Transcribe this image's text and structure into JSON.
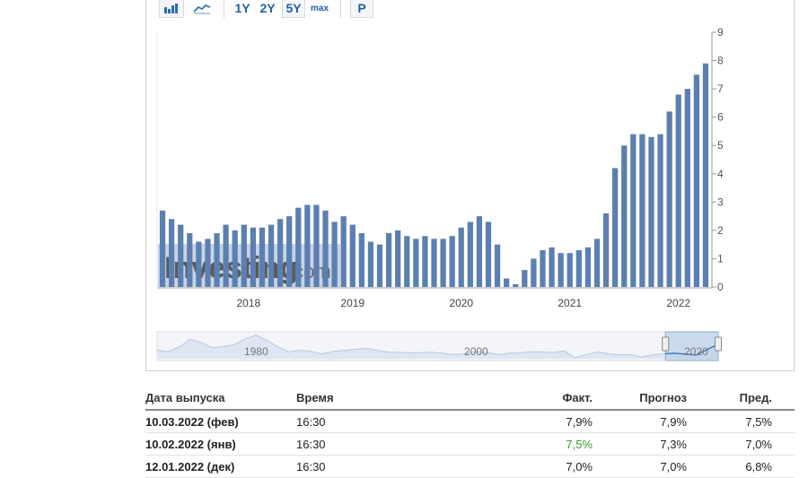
{
  "toolbar": {
    "icons": [
      "bar-chart-icon",
      "line-chart-icon"
    ],
    "range_buttons": [
      "1Y",
      "2Y",
      "5Y",
      "max"
    ],
    "selected_range": "5Y",
    "p_button": "P"
  },
  "colors": {
    "bar": "#5b7fb0",
    "watermark_bg": "#c7d3e6",
    "positive": "#3a9a2a",
    "link": "#1f5fa8"
  },
  "watermark": {
    "text_main": "Investing",
    "text_suffix": ".com"
  },
  "chart_data": {
    "type": "bar",
    "y_axis_position": "right",
    "ylim": [
      0,
      9
    ],
    "yticks": [
      "0",
      "1",
      "2",
      "3",
      "4",
      "5",
      "6",
      "7",
      "8",
      "9"
    ],
    "x_tick_labels": [
      {
        "label": "2018",
        "index": 9.5
      },
      {
        "label": "2019",
        "index": 21
      },
      {
        "label": "2020",
        "index": 33
      },
      {
        "label": "2021",
        "index": 45
      },
      {
        "label": "2022",
        "index": 57
      }
    ],
    "values": [
      2.7,
      2.4,
      2.2,
      1.9,
      1.6,
      1.7,
      1.9,
      2.2,
      2.0,
      2.2,
      2.1,
      2.1,
      2.2,
      2.4,
      2.5,
      2.8,
      2.9,
      2.9,
      2.7,
      2.3,
      2.5,
      2.2,
      1.9,
      1.6,
      1.5,
      1.9,
      2.0,
      1.8,
      1.7,
      1.8,
      1.7,
      1.7,
      1.8,
      2.1,
      2.3,
      2.5,
      2.3,
      1.5,
      0.3,
      0.1,
      0.6,
      1.0,
      1.3,
      1.4,
      1.2,
      1.2,
      1.3,
      1.4,
      1.7,
      2.6,
      4.2,
      5.0,
      5.4,
      5.4,
      5.3,
      5.4,
      6.2,
      6.8,
      7.0,
      7.5,
      7.9
    ]
  },
  "navigator": {
    "labels": [
      "1980",
      "2000",
      "2020"
    ],
    "line": [
      [
        1971,
        4.4
      ],
      [
        1972,
        3.3
      ],
      [
        1973,
        6.2
      ],
      [
        1974,
        11.0
      ],
      [
        1975,
        9.1
      ],
      [
        1976,
        5.8
      ],
      [
        1977,
        6.5
      ],
      [
        1978,
        7.6
      ],
      [
        1979,
        11.3
      ],
      [
        1980,
        13.5
      ],
      [
        1981,
        10.3
      ],
      [
        1982,
        6.2
      ],
      [
        1983,
        3.2
      ],
      [
        1984,
        4.3
      ],
      [
        1985,
        3.6
      ],
      [
        1986,
        1.9
      ],
      [
        1987,
        3.6
      ],
      [
        1988,
        4.1
      ],
      [
        1989,
        4.8
      ],
      [
        1990,
        5.4
      ],
      [
        1991,
        4.2
      ],
      [
        1992,
        3.0
      ],
      [
        1993,
        3.0
      ],
      [
        1994,
        2.6
      ],
      [
        1995,
        2.8
      ],
      [
        1996,
        3.0
      ],
      [
        1997,
        2.3
      ],
      [
        1998,
        1.6
      ],
      [
        1999,
        2.2
      ],
      [
        2000,
        3.4
      ],
      [
        2001,
        2.8
      ],
      [
        2002,
        1.6
      ],
      [
        2003,
        2.3
      ],
      [
        2004,
        2.7
      ],
      [
        2005,
        3.4
      ],
      [
        2006,
        3.2
      ],
      [
        2007,
        2.8
      ],
      [
        2008,
        3.8
      ],
      [
        2009,
        -0.4
      ],
      [
        2010,
        1.6
      ],
      [
        2011,
        3.2
      ],
      [
        2012,
        2.1
      ],
      [
        2013,
        1.5
      ],
      [
        2014,
        1.6
      ],
      [
        2015,
        0.1
      ],
      [
        2016,
        1.3
      ],
      [
        2017,
        2.1
      ],
      [
        2018,
        2.4
      ],
      [
        2019,
        1.8
      ],
      [
        2020,
        1.2
      ],
      [
        2021,
        4.7
      ],
      [
        2022,
        7.9
      ]
    ],
    "x_range": [
      1971,
      2022
    ],
    "selection_start": 2017.2
  },
  "table": {
    "headers": {
      "date": "Дата выпуска",
      "time": "Время",
      "actual": "Факт.",
      "forecast": "Прогноз",
      "previous": "Пред."
    },
    "rows": [
      {
        "date": "10.03.2022 (фев)",
        "time": "16:30",
        "actual": "7,9%",
        "actual_status": "neutral",
        "forecast": "7,9%",
        "previous": "7,5%"
      },
      {
        "date": "10.02.2022 (янв)",
        "time": "16:30",
        "actual": "7,5%",
        "actual_status": "positive",
        "forecast": "7,3%",
        "previous": "7,0%"
      },
      {
        "date": "12.01.2022 (дек)",
        "time": "16:30",
        "actual": "7,0%",
        "actual_status": "neutral",
        "forecast": "7,0%",
        "previous": "6,8%"
      }
    ]
  }
}
